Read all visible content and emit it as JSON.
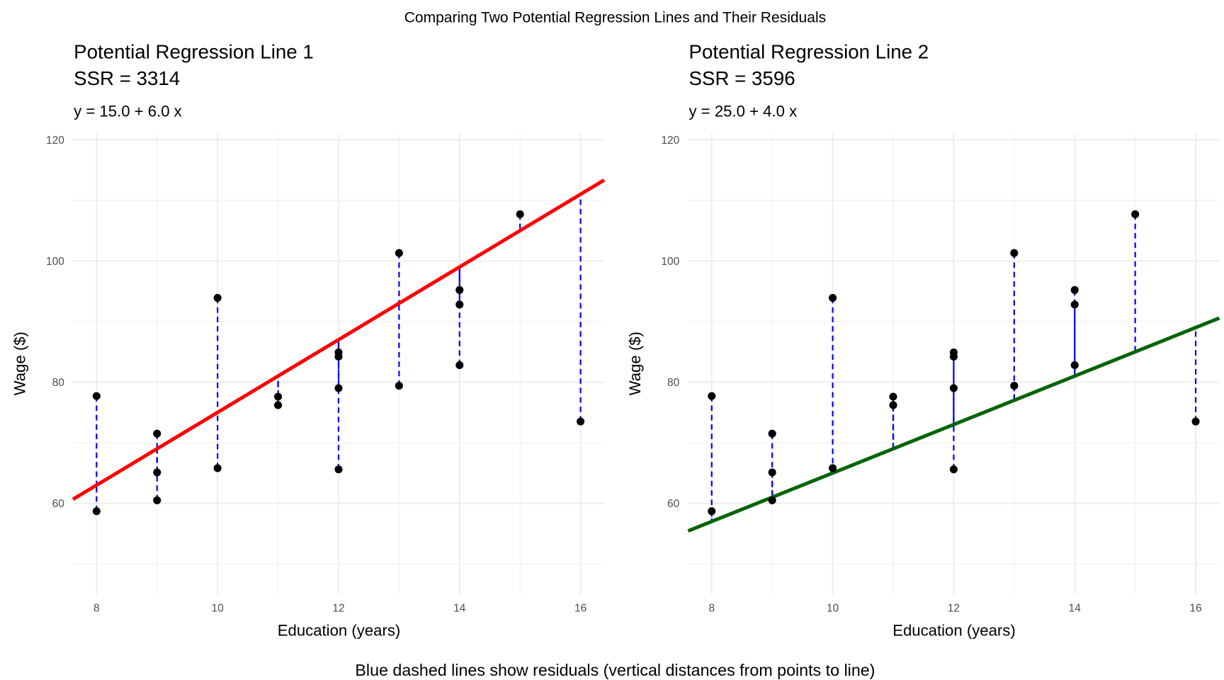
{
  "chart_data": {
    "type": "scatter",
    "title": "Comparing Two Potential Regression Lines and Their Residuals",
    "caption": "Blue dashed lines show residuals (vertical distances from points to line)",
    "points": {
      "x": [
        8,
        8,
        9,
        9,
        9,
        10,
        10,
        11,
        11,
        12,
        12,
        12,
        12,
        13,
        13,
        14,
        14,
        14,
        15,
        16
      ],
      "y": [
        77.7,
        58.7,
        71.5,
        65.1,
        60.5,
        93.9,
        65.8,
        77.6,
        76.2,
        84.9,
        84.2,
        79.0,
        65.6,
        101.3,
        79.4,
        95.2,
        92.8,
        82.8,
        107.7,
        73.5
      ]
    },
    "panels": [
      {
        "title": "Potential Regression Line 1",
        "ssr_label": "SSR = 3314",
        "subtitle": "y = 15.0 + 6.0 x",
        "intercept": 15.0,
        "slope": 6.0,
        "line_color": "#ff0000",
        "xlabel": "Education (years)",
        "ylabel": "Wage ($)"
      },
      {
        "title": "Potential Regression Line 2",
        "ssr_label": "SSR = 3596",
        "subtitle": "y = 25.0 + 4.0 x",
        "intercept": 25.0,
        "slope": 4.0,
        "line_color": "#006400",
        "xlabel": "Education (years)",
        "ylabel": "Wage ($)"
      }
    ],
    "residual_color": "#0000ff",
    "point_color": "#000000",
    "xlim": [
      7.61,
      16.39
    ],
    "ylim": [
      45,
      121
    ],
    "xticks": [
      8,
      10,
      12,
      14,
      16
    ],
    "xminor": [
      9,
      11,
      13,
      15
    ],
    "yticks": [
      60,
      80,
      100,
      120
    ],
    "yminor": [
      50,
      70,
      90,
      110
    ],
    "grid": true
  }
}
